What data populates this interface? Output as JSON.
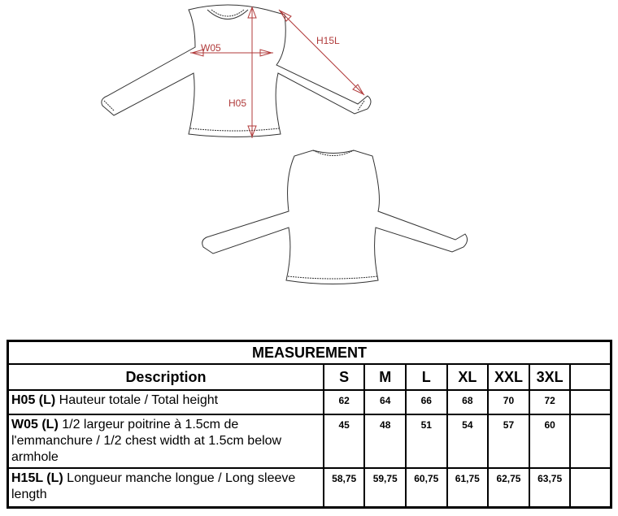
{
  "drawing": {
    "labels": {
      "w05": "W05",
      "h05": "H05",
      "h15l": "H15L"
    },
    "measure_color": "#b03a3a"
  },
  "table": {
    "title": "MEASUREMENT",
    "description_header": "Description",
    "sizes": [
      "S",
      "M",
      "L",
      "XL",
      "XXL",
      "3XL",
      ""
    ],
    "rows": [
      {
        "code": "H05 (L)",
        "text": " Hauteur totale / Total height",
        "values": [
          "62",
          "64",
          "66",
          "68",
          "70",
          "72",
          ""
        ]
      },
      {
        "code": "W05 (L)",
        "text": " 1/2 largeur poitrine à 1.5cm de l'emmanchure / 1/2 chest width at 1.5cm below armhole",
        "values": [
          "45",
          "48",
          "51",
          "54",
          "57",
          "60",
          ""
        ]
      },
      {
        "code": "H15L (L)",
        "text": " Longueur manche longue / Long sleeve length",
        "values": [
          "58,75",
          "59,75",
          "60,75",
          "61,75",
          "62,75",
          "63,75",
          ""
        ]
      }
    ]
  }
}
